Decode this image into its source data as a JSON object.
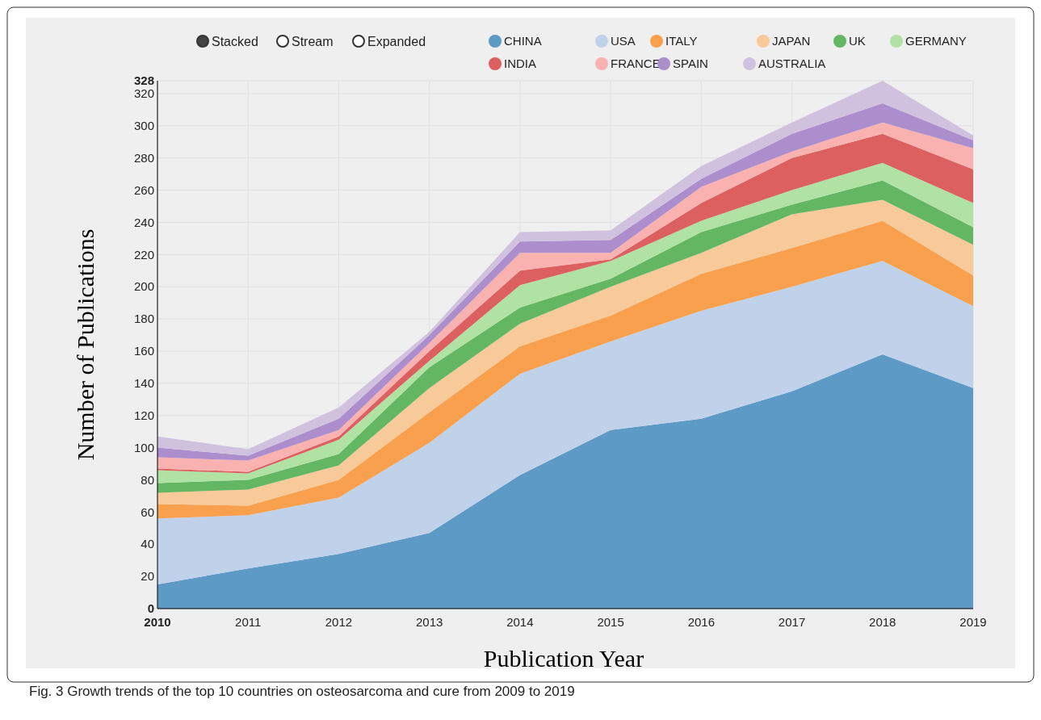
{
  "chart_data": {
    "type": "area",
    "stacked": true,
    "xlabel": "Publication Year",
    "ylabel": "Number of Publications",
    "categories": [
      "2010",
      "2011",
      "2012",
      "2013",
      "2014",
      "2015",
      "2016",
      "2017",
      "2018",
      "2019"
    ],
    "ylim": [
      0,
      328
    ],
    "yticks": [
      0,
      20,
      40,
      60,
      80,
      100,
      120,
      140,
      160,
      180,
      200,
      220,
      240,
      260,
      280,
      300,
      320,
      328
    ],
    "grid": true,
    "legend": "top",
    "series": [
      {
        "name": "CHINA",
        "color": "#5e9ac6",
        "values": [
          15,
          25,
          34,
          47,
          83,
          111,
          118,
          135,
          158,
          137
        ]
      },
      {
        "name": "USA",
        "color": "#c0d2ea",
        "values": [
          41,
          33,
          35,
          56,
          63,
          55,
          67,
          65,
          58,
          51
        ]
      },
      {
        "name": "ITALY",
        "color": "#f8a04d",
        "values": [
          9,
          6,
          11,
          19,
          17,
          16,
          23,
          24,
          25,
          19
        ]
      },
      {
        "name": "JAPAN",
        "color": "#f8c999",
        "values": [
          7,
          10,
          9,
          15,
          14,
          18,
          13,
          21,
          13,
          19
        ]
      },
      {
        "name": "UK",
        "color": "#63b662",
        "values": [
          6,
          6,
          7,
          13,
          10,
          5,
          13,
          6,
          12,
          11
        ]
      },
      {
        "name": "GERMANY",
        "color": "#b0e2a4",
        "values": [
          8,
          4,
          9,
          4,
          14,
          11,
          7,
          9,
          11,
          15
        ]
      },
      {
        "name": "INDIA",
        "color": "#dc6060",
        "values": [
          1,
          1,
          2,
          6,
          9,
          1,
          11,
          20,
          18,
          21
        ]
      },
      {
        "name": "FRANCE",
        "color": "#f9b2b0",
        "values": [
          7,
          7,
          4,
          5,
          11,
          4,
          10,
          4,
          7,
          13
        ]
      },
      {
        "name": "SPAIN",
        "color": "#ab8ecb",
        "values": [
          6,
          3,
          7,
          5,
          7,
          8,
          5,
          11,
          12,
          5
        ]
      },
      {
        "name": "AUSTRALIA",
        "color": "#d0c2de",
        "values": [
          7,
          4,
          7,
          2,
          6,
          6,
          8,
          7,
          14,
          3
        ]
      }
    ],
    "annotations": [
      "Stacked",
      "Stream",
      "Expanded",
      "Fig. 3 Growth trends of the top 10 countries on osteosarcoma and cure from 2009 to 2019"
    ]
  }
}
